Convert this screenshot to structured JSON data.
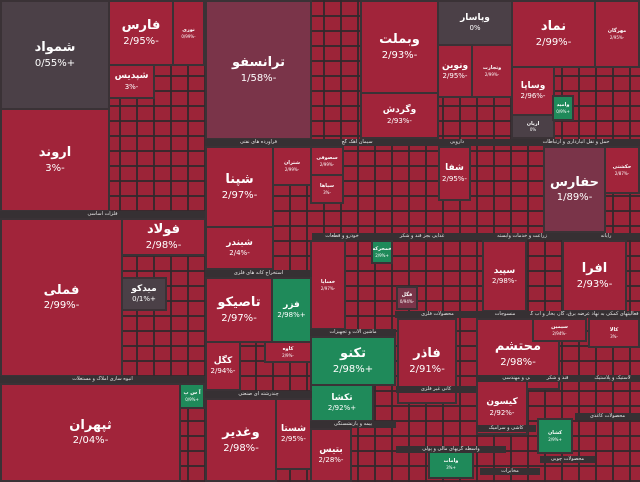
{
  "colors": {
    "down": "#a1243a",
    "neutral": "#4b4047",
    "mild": "#7a3449",
    "up": "#1f8a5a",
    "gap": "#363033"
  },
  "tiles": [
    {
      "name": "شمواد",
      "value": "+0/55%"
    },
    {
      "name": "فارس",
      "value": "-2/95%"
    },
    {
      "name": "نوری",
      "value": "-0/99%"
    },
    {
      "name": "شپدیس",
      "value": "-3%"
    },
    {
      "name": "ترانسفو",
      "value": "-1/58%"
    },
    {
      "name": "اروند",
      "value": "-3%"
    },
    {
      "name": "فولاد",
      "value": "-2/98%"
    },
    {
      "name": "فملی",
      "value": "-2/99%"
    },
    {
      "name": "میدکو",
      "value": "+0/1%"
    },
    {
      "name": "ثپهران",
      "value": "-2/04%"
    },
    {
      "name": "آ س پ",
      "value": "+0/9%"
    },
    {
      "name": "شپنا",
      "value": "-2/97%"
    },
    {
      "name": "شتران",
      "value": "-2/99%"
    },
    {
      "name": "شبندر",
      "value": "-2/4%"
    },
    {
      "name": "تاصیکو",
      "value": "-2/97%"
    },
    {
      "name": "فزر",
      "value": "+2/98%"
    },
    {
      "name": "کگل",
      "value": "-2/94%"
    },
    {
      "name": "وغدیر",
      "value": "-2/98%"
    },
    {
      "name": "شستا",
      "value": "-2/95%"
    },
    {
      "name": "وبملت",
      "value": "-2/93%"
    },
    {
      "name": "وپاسار",
      "value": "0%"
    },
    {
      "name": "نماد",
      "value": "-2/99%"
    },
    {
      "name": "مهرگان",
      "value": "-2/95%"
    },
    {
      "name": "وگردش",
      "value": "-2/93%"
    },
    {
      "name": "ونوین",
      "value": "-2/95%"
    },
    {
      "name": "وتجارت",
      "value": "-2/99%"
    },
    {
      "name": "وساپا",
      "value": "-2/96%"
    },
    {
      "name": "اریان",
      "value": "0%"
    },
    {
      "name": "وامید",
      "value": "+0/9%"
    },
    {
      "name": "حفارس",
      "value": "-1/89%"
    },
    {
      "name": "حکشتی",
      "value": "-2/87%"
    },
    {
      "name": "شفا",
      "value": "-2/95%"
    },
    {
      "name": "سصوفی",
      "value": "-2/99%"
    },
    {
      "name": "سپاها",
      "value": "-3%"
    },
    {
      "name": "خساپا",
      "value": "-2/97%"
    },
    {
      "name": "تکنو",
      "value": "+2/98%"
    },
    {
      "name": "تکشا",
      "value": "+2/92%"
    },
    {
      "name": "بتیس",
      "value": "-2/28%"
    },
    {
      "name": "فاذر",
      "value": "-2/91%"
    },
    {
      "name": "محتشم",
      "value": "-2/98%"
    },
    {
      "name": "افرا",
      "value": "-2/93%"
    },
    {
      "name": "سپید",
      "value": "-2/98%"
    },
    {
      "name": "کیسون",
      "value": "-2/92%"
    },
    {
      "name": "کشان",
      "value": "+2/9%"
    },
    {
      "name": "وامات",
      "value": "+3%"
    },
    {
      "name": "فگل",
      "value": "-0/94%"
    },
    {
      "name": "خمحرکه",
      "value": "+2/9%"
    },
    {
      "name": "سیمین",
      "value": "-2/94%"
    },
    {
      "name": "کالا",
      "value": "-3%"
    },
    {
      "name": "کاوه",
      "value": "-2/9%"
    }
  ],
  "sectors": [
    "فراورده های نفتی",
    "فلزات اساسی",
    "انبوه سازی املاک و مستغلات",
    "استخراج کانه های فلزی",
    "چندرشته ای صنعتی",
    "سیمان آهک گچ",
    "دارویی",
    "حمل و نقل انبارداری و ارتباطات",
    "خودرو و قطعات",
    "غذایی بجز قند و شکر",
    "زراعت و خدمات وابسته",
    "رایانه",
    "محصولات فلزی",
    "منسوجات",
    "عرضه برق، گاز، بخار و آب گرم",
    "فعالیتهای کمکی به نهاد",
    "ماشین آلات و تجهیزات",
    "فنی و مهندسی",
    "قند و شکر",
    "لاستیک و پلاستیک",
    "کانی غیر فلزی",
    "بیمه و بازنشستگی",
    "واسطه گریهای مالی و پولی",
    "کاشی و سرامیک",
    "محصولات کاغذی",
    "مخابرات",
    "محصولات چوبی"
  ]
}
